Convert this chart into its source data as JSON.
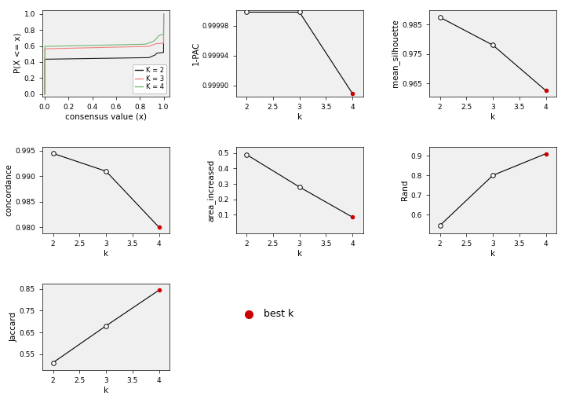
{
  "pac": {
    "k": [
      2,
      3,
      4
    ],
    "y": [
      0.999998,
      0.999998,
      0.999889
    ],
    "best_k": 4,
    "ylabel": "1-PAC",
    "ylim": [
      0.999885,
      1.000001
    ],
    "yticks": [
      0.9999,
      0.99994,
      0.99998
    ]
  },
  "silhouette": {
    "k": [
      2,
      3,
      4
    ],
    "y": [
      0.9875,
      0.978,
      0.9625
    ],
    "best_k": 4,
    "ylabel": "mean_silhouette",
    "ylim": [
      0.9605,
      0.99
    ],
    "yticks": [
      0.965,
      0.975,
      0.985
    ]
  },
  "concordance": {
    "k": [
      2,
      3,
      4
    ],
    "y": [
      0.9945,
      0.991,
      0.98
    ],
    "best_k": 4,
    "ylabel": "concordance",
    "ylim": [
      0.9788,
      0.9958
    ],
    "yticks": [
      0.98,
      0.985,
      0.99,
      0.995
    ]
  },
  "area_increased": {
    "k": [
      2,
      3,
      4
    ],
    "y": [
      0.49,
      0.28,
      0.085
    ],
    "best_k": 4,
    "ylabel": "area_increased",
    "ylim": [
      -0.02,
      0.54
    ],
    "yticks": [
      0.1,
      0.2,
      0.3,
      0.4,
      0.5
    ]
  },
  "rand": {
    "k": [
      2,
      3,
      4
    ],
    "y": [
      0.545,
      0.8,
      0.91
    ],
    "best_k": 4,
    "ylabel": "Rand",
    "ylim": [
      0.505,
      0.945
    ],
    "yticks": [
      0.6,
      0.7,
      0.8,
      0.9
    ]
  },
  "jaccard": {
    "k": [
      2,
      3,
      4
    ],
    "y": [
      0.51,
      0.68,
      0.845
    ],
    "best_k": 4,
    "ylabel": "Jaccard",
    "ylim": [
      0.475,
      0.875
    ],
    "yticks": [
      0.55,
      0.65,
      0.75,
      0.85
    ]
  },
  "best_k_color": "#cc0000",
  "line_color": "black",
  "xlabel_k": "k",
  "xlabel_ecdf": "consensus value (x)",
  "ylabel_ecdf": "P(X <= x)",
  "ecdf_colors": {
    "k2": "#1a1a1a",
    "k3": "#f08080",
    "k4": "#70b870"
  },
  "bg_color": "#f0f0f0"
}
